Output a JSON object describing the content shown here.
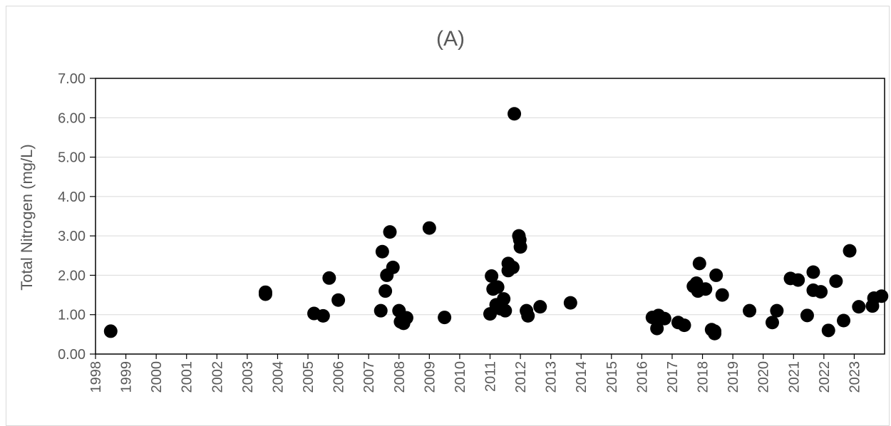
{
  "chart_data": {
    "type": "scatter",
    "title": "(A)",
    "xlabel": "",
    "ylabel": "Total Nitrogen (mg/L)",
    "xlim": [
      1998,
      2024
    ],
    "ylim": [
      0,
      7
    ],
    "x_ticks": [
      "1998",
      "1999",
      "2000",
      "2001",
      "2002",
      "2003",
      "2004",
      "2005",
      "2006",
      "2007",
      "2008",
      "2009",
      "2010",
      "2011",
      "2012",
      "2013",
      "2014",
      "2015",
      "2016",
      "2017",
      "2018",
      "2019",
      "2020",
      "2021",
      "2022",
      "2023"
    ],
    "y_ticks": [
      "0.00",
      "1.00",
      "2.00",
      "3.00",
      "4.00",
      "5.00",
      "6.00",
      "7.00"
    ],
    "grid": "horizontal",
    "legend": "none",
    "marker_color": "#000000",
    "series": [
      {
        "points": [
          [
            1998.5,
            0.58
          ],
          [
            2003.6,
            1.57
          ],
          [
            2003.6,
            1.52
          ],
          [
            2005.2,
            1.03
          ],
          [
            2005.5,
            0.97
          ],
          [
            2005.7,
            1.93
          ],
          [
            2006.0,
            1.37
          ],
          [
            2007.4,
            1.1
          ],
          [
            2007.45,
            2.6
          ],
          [
            2007.55,
            1.6
          ],
          [
            2007.6,
            2.0
          ],
          [
            2007.7,
            3.1
          ],
          [
            2007.8,
            2.2
          ],
          [
            2008.0,
            1.1
          ],
          [
            2008.05,
            0.82
          ],
          [
            2008.15,
            0.78
          ],
          [
            2008.25,
            0.92
          ],
          [
            2009.0,
            3.2
          ],
          [
            2009.5,
            0.93
          ],
          [
            2011.0,
            1.02
          ],
          [
            2011.05,
            1.98
          ],
          [
            2011.1,
            1.65
          ],
          [
            2011.2,
            1.25
          ],
          [
            2011.25,
            1.7
          ],
          [
            2011.35,
            1.15
          ],
          [
            2011.45,
            1.4
          ],
          [
            2011.5,
            1.1
          ],
          [
            2011.6,
            2.3
          ],
          [
            2011.6,
            2.12
          ],
          [
            2011.75,
            2.2
          ],
          [
            2011.8,
            6.1
          ],
          [
            2011.95,
            3.0
          ],
          [
            2011.98,
            2.9
          ],
          [
            2012.0,
            2.72
          ],
          [
            2012.2,
            1.1
          ],
          [
            2012.25,
            0.97
          ],
          [
            2012.65,
            1.2
          ],
          [
            2013.65,
            1.3
          ],
          [
            2016.35,
            0.93
          ],
          [
            2016.5,
            0.65
          ],
          [
            2016.55,
            0.98
          ],
          [
            2016.75,
            0.9
          ],
          [
            2017.2,
            0.8
          ],
          [
            2017.4,
            0.73
          ],
          [
            2017.7,
            1.72
          ],
          [
            2017.8,
            1.8
          ],
          [
            2017.85,
            1.6
          ],
          [
            2017.9,
            2.3
          ],
          [
            2018.1,
            1.65
          ],
          [
            2018.3,
            0.62
          ],
          [
            2018.4,
            0.52
          ],
          [
            2018.4,
            0.58
          ],
          [
            2018.45,
            2.0
          ],
          [
            2018.65,
            1.5
          ],
          [
            2019.55,
            1.1
          ],
          [
            2020.3,
            0.8
          ],
          [
            2020.45,
            1.1
          ],
          [
            2020.9,
            1.92
          ],
          [
            2021.15,
            1.88
          ],
          [
            2021.45,
            0.98
          ],
          [
            2021.65,
            2.08
          ],
          [
            2021.65,
            1.62
          ],
          [
            2021.9,
            1.58
          ],
          [
            2022.15,
            0.6
          ],
          [
            2022.4,
            1.85
          ],
          [
            2022.65,
            0.85
          ],
          [
            2022.85,
            2.62
          ],
          [
            2023.15,
            1.2
          ],
          [
            2023.6,
            1.22
          ],
          [
            2023.65,
            1.42
          ],
          [
            2023.9,
            1.47
          ]
        ]
      }
    ]
  }
}
